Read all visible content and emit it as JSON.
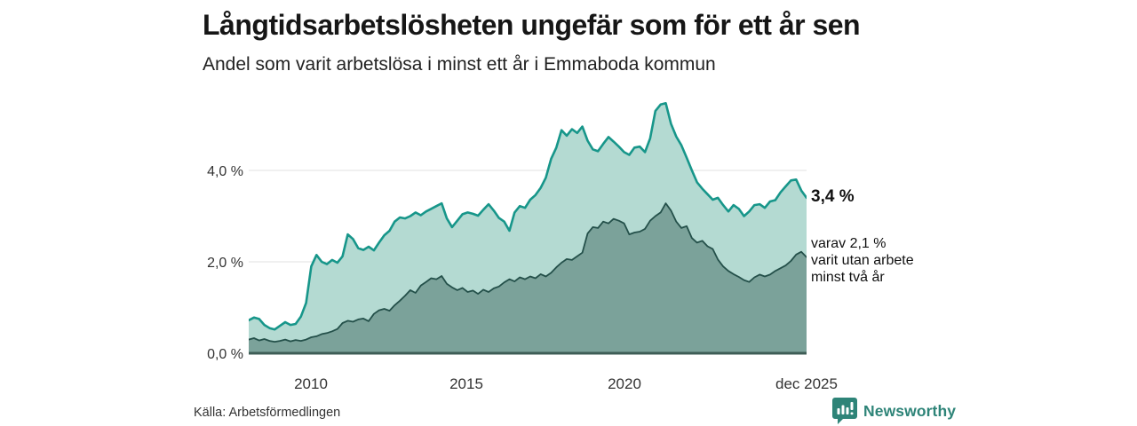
{
  "header": {
    "title": "Långtidsarbetslösheten ungefär som för ett år sen",
    "subtitle": "Andel som varit arbetslösa i minst ett år i Emmaboda kommun"
  },
  "chart_data": {
    "type": "area",
    "title": "Långtidsarbetslösheten ungefär som för ett år sen",
    "subtitle": "Andel som varit arbetslösa i minst ett år i Emmaboda kommun",
    "unit": "%",
    "x_start_year": 2008.0,
    "x_end_year": 2025.917,
    "x_resolution": "2 months",
    "ylim": [
      0,
      5.9
    ],
    "grid": true,
    "gridline_values": [
      4,
      2
    ],
    "y_ticks": [
      "4,0 %",
      "2,0 %",
      "0,0 %"
    ],
    "y_tick_values": [
      4.0,
      2.0,
      0.0
    ],
    "x_ticks": [
      "2010",
      "2015",
      "2020",
      "dec 2025"
    ],
    "x_tick_years": [
      2010,
      2015,
      2020,
      2025.917
    ],
    "series": [
      {
        "name": "Andel arbetslösa minst ett år",
        "last_value": 3.4,
        "last_value_label": "3,4 %",
        "color": "#17968a",
        "fill": "#b4dad2",
        "values": [
          0.72,
          0.78,
          0.75,
          0.62,
          0.55,
          0.52,
          0.6,
          0.68,
          0.62,
          0.64,
          0.8,
          1.1,
          1.9,
          2.15,
          2.0,
          1.95,
          2.04,
          1.98,
          2.12,
          2.6,
          2.5,
          2.3,
          2.26,
          2.33,
          2.25,
          2.42,
          2.58,
          2.68,
          2.88,
          2.97,
          2.95,
          3.0,
          3.08,
          3.02,
          3.1,
          3.16,
          3.22,
          3.28,
          2.95,
          2.76,
          2.9,
          3.04,
          3.08,
          3.05,
          3.01,
          3.14,
          3.26,
          3.12,
          2.96,
          2.88,
          2.68,
          3.08,
          3.22,
          3.18,
          3.36,
          3.46,
          3.62,
          3.84,
          4.25,
          4.5,
          4.88,
          4.76,
          4.9,
          4.82,
          4.96,
          4.65,
          4.46,
          4.42,
          4.58,
          4.73,
          4.63,
          4.52,
          4.4,
          4.34,
          4.5,
          4.52,
          4.4,
          4.7,
          5.3,
          5.44,
          5.47,
          5.02,
          4.74,
          4.55,
          4.28,
          4.0,
          3.74,
          3.6,
          3.48,
          3.36,
          3.4,
          3.24,
          3.1,
          3.24,
          3.16,
          3.0,
          3.1,
          3.24,
          3.26,
          3.18,
          3.32,
          3.35,
          3.52,
          3.65,
          3.78,
          3.8,
          3.56,
          3.4
        ]
      },
      {
        "name": "Andel arbetslösa minst två år",
        "last_value": 2.1,
        "last_value_label": "2,1 %",
        "color": "#24504a",
        "fill": "#7ba29a",
        "values": [
          0.3,
          0.33,
          0.28,
          0.31,
          0.27,
          0.25,
          0.27,
          0.3,
          0.26,
          0.29,
          0.27,
          0.3,
          0.35,
          0.37,
          0.42,
          0.44,
          0.48,
          0.53,
          0.66,
          0.71,
          0.69,
          0.74,
          0.76,
          0.7,
          0.86,
          0.94,
          0.97,
          0.93,
          1.05,
          1.15,
          1.26,
          1.38,
          1.32,
          1.48,
          1.56,
          1.64,
          1.62,
          1.69,
          1.52,
          1.44,
          1.38,
          1.43,
          1.34,
          1.37,
          1.3,
          1.39,
          1.34,
          1.42,
          1.46,
          1.55,
          1.62,
          1.57,
          1.66,
          1.62,
          1.68,
          1.64,
          1.73,
          1.68,
          1.76,
          1.88,
          1.98,
          2.06,
          2.04,
          2.12,
          2.2,
          2.62,
          2.76,
          2.74,
          2.88,
          2.84,
          2.94,
          2.9,
          2.84,
          2.6,
          2.64,
          2.66,
          2.72,
          2.9,
          3.0,
          3.08,
          3.28,
          3.12,
          2.88,
          2.74,
          2.78,
          2.52,
          2.42,
          2.46,
          2.34,
          2.28,
          2.05,
          1.9,
          1.8,
          1.73,
          1.67,
          1.6,
          1.56,
          1.66,
          1.72,
          1.68,
          1.72,
          1.8,
          1.86,
          1.92,
          2.02,
          2.16,
          2.22,
          2.1
        ]
      }
    ],
    "annotations": {
      "main": "3,4 %",
      "sub_lines": [
        "varav 2,1 %",
        "varit utan arbete",
        "minst två år"
      ]
    },
    "legend_position": "none"
  },
  "colors": {
    "background": "#ffffff",
    "gridline": "#e0e0e0",
    "baseline": "#3e5d56",
    "series1_line": "#17968a",
    "series1_fill": "#b4dad2",
    "series2_line": "#24504a",
    "series2_fill": "#7ba29a",
    "brand": "#2e8478",
    "title_text": "#161616",
    "tick_text": "#333333"
  },
  "footer": {
    "source": "Källa: Arbetsförmedlingen",
    "brand": "Newsworthy"
  }
}
